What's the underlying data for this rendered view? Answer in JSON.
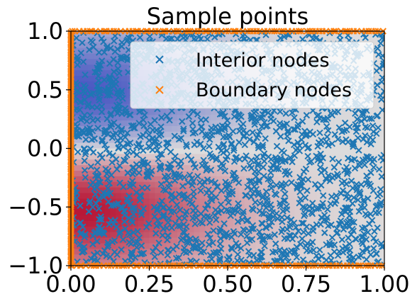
{
  "chart_data": {
    "type": "scatter",
    "title": "Sample points",
    "xlabel": "",
    "ylabel": "",
    "xlim": [
      0.0,
      1.0
    ],
    "ylim": [
      -1.0,
      1.0
    ],
    "xticks": [
      0.0,
      0.25,
      0.5,
      0.75,
      1.0
    ],
    "xtick_labels": [
      "0.00",
      "0.25",
      "0.50",
      "0.75",
      "1.00"
    ],
    "yticks": [
      -1.0,
      -0.5,
      0.0,
      0.5,
      1.0
    ],
    "ytick_labels": [
      "−1.0",
      "−0.5",
      "0.0",
      "0.5",
      "1.0"
    ],
    "grid": false,
    "legend_position": "top-right",
    "background_field": {
      "description_colormap": "coolwarm",
      "blobs": [
        {
          "x": 0.03,
          "y": 0.45,
          "sign": "negative",
          "strength": 1.0
        },
        {
          "x": 0.03,
          "y": -0.5,
          "sign": "positive",
          "strength": 1.0
        }
      ]
    },
    "series": [
      {
        "name": "Interior nodes",
        "marker": "x",
        "color": "#1f77b4",
        "distribution": "uniform",
        "count": 2000,
        "x_range": [
          0.0,
          1.0
        ],
        "y_range": [
          -1.0,
          1.0
        ]
      },
      {
        "name": "Boundary nodes",
        "marker": "x",
        "color": "#ff7f0e",
        "distribution": "boundary",
        "edges": [
          {
            "side": "left",
            "x": 0.0,
            "y_range": [
              -1.0,
              1.0
            ],
            "count": 160
          },
          {
            "side": "top",
            "y": 1.0,
            "x_range": [
              0.0,
              1.0
            ],
            "count": 90
          },
          {
            "side": "bottom",
            "y": -1.0,
            "x_range": [
              0.0,
              1.0
            ],
            "count": 90
          }
        ]
      }
    ]
  },
  "colors": {
    "interior": "#1f77b4",
    "boundary": "#ff7f0e",
    "cold": "#3b4cc0",
    "neutral": "#dddcdc",
    "hot": "#b40426"
  }
}
